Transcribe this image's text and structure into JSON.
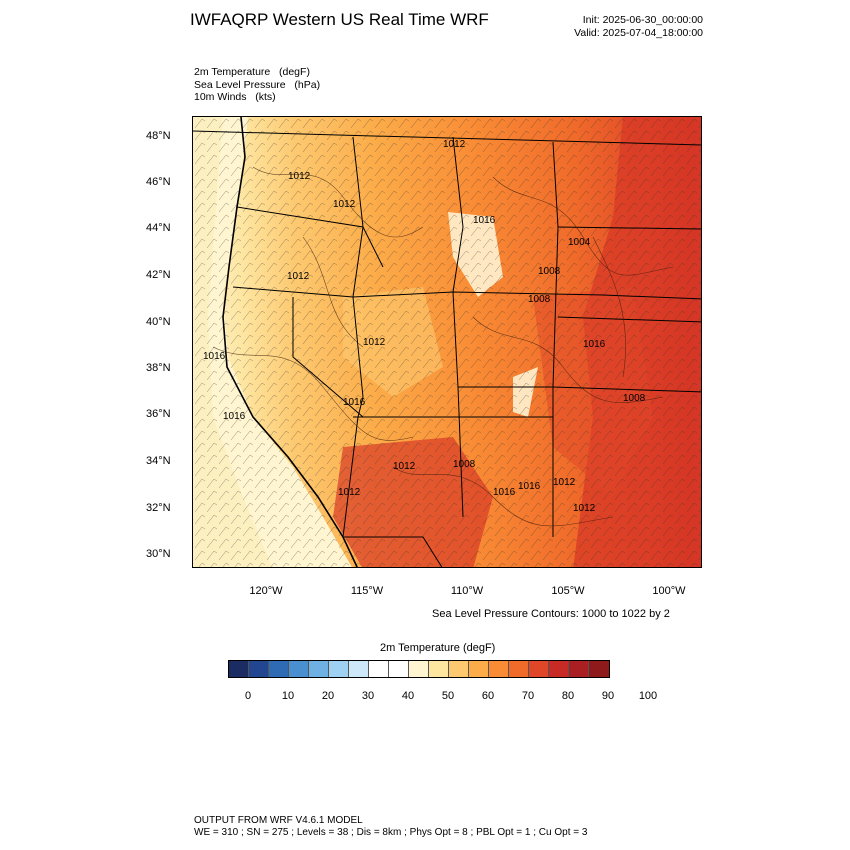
{
  "header": {
    "title": "IWFAQRP Western US Real Time WRF",
    "init": "Init: 2025-06-30_00:00:00",
    "valid": "Valid: 2025-07-04_18:00:00"
  },
  "fields": [
    "2m Temperature   (degF)",
    "Sea Level Pressure   (hPa)",
    "10m Winds   (kts)"
  ],
  "map": {
    "lat_labels": [
      "48°N",
      "46°N",
      "44°N",
      "42°N",
      "40°N",
      "38°N",
      "36°N",
      "34°N",
      "32°N",
      "30°N"
    ],
    "lon_labels": [
      "120°W",
      "115°W",
      "110°W",
      "105°W",
      "100°W"
    ],
    "pressure_labels": [
      "1012",
      "1012",
      "1012",
      "1016",
      "1008",
      "1004",
      "1012",
      "1016",
      "1008",
      "1016",
      "1012",
      "1016",
      "1016",
      "1012",
      "1012",
      "1016",
      "1008",
      "1012",
      "1012",
      "1016",
      "1008"
    ]
  },
  "contour_note": "Sea Level Pressure Contours: 1000 to 1022 by 2",
  "colorbar": {
    "title": "2m Temperature  (degF)",
    "labels": [
      "0",
      "10",
      "20",
      "30",
      "40",
      "50",
      "60",
      "70",
      "80",
      "90",
      "100"
    ],
    "colors": [
      "#1b2c62",
      "#22468f",
      "#2f6ab5",
      "#4a8fd0",
      "#70b1e4",
      "#9fd1f2",
      "#cde9f9",
      "#ffffff",
      "#ffffff",
      "#fff5d0",
      "#fee5a0",
      "#fdc970",
      "#fcad4a",
      "#f98c35",
      "#f06a2a",
      "#e04628",
      "#c82a26",
      "#a91f22",
      "#8f1a1c"
    ]
  },
  "footer": {
    "line1": "OUTPUT FROM WRF V4.6.1 MODEL",
    "line2": "WE = 310 ; SN = 275 ; Levels = 38 ; Dis = 8km ; Phys Opt = 8 ; PBL Opt = 1 ; Cu Opt = 3"
  }
}
